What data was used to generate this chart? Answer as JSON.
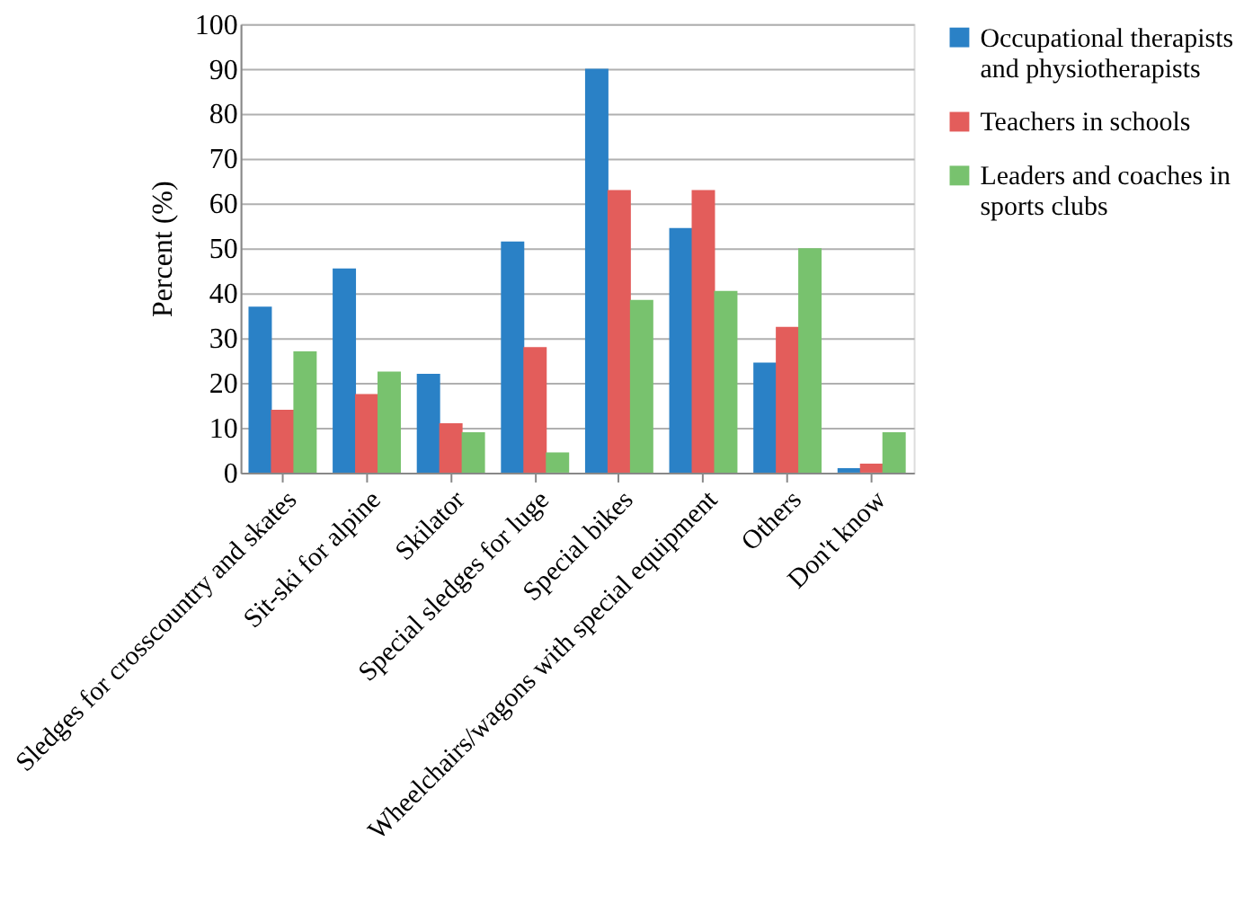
{
  "chart_data": {
    "type": "bar",
    "ylabel": "Percent (%)",
    "categories": [
      "Sledges for crosscountry and skates",
      "Sit-ski for alpine",
      "Skilator",
      "Special sledges for luge",
      "Special bikes",
      "Wheelchairs/wagons with special equipment",
      "Others",
      "Don't know"
    ],
    "series": [
      {
        "name": "Occupational therapists and physiotherapists",
        "color": "#2a81c6",
        "values": [
          37,
          45.5,
          22,
          51.5,
          90,
          54.5,
          24.5,
          1
        ]
      },
      {
        "name": "Teachers in schools",
        "color": "#e35d5b",
        "values": [
          14,
          17.5,
          11,
          28,
          63,
          63,
          32.5,
          2
        ]
      },
      {
        "name": "Leaders and coaches in sports clubs",
        "color": "#78c26e",
        "values": [
          27,
          22.5,
          9,
          4.5,
          38.5,
          40.5,
          50,
          9
        ]
      }
    ],
    "ylim": [
      0,
      100
    ],
    "yticks": [
      0,
      10,
      20,
      30,
      40,
      50,
      60,
      70,
      80,
      90,
      100
    ],
    "grid": "y",
    "legend": "right"
  }
}
